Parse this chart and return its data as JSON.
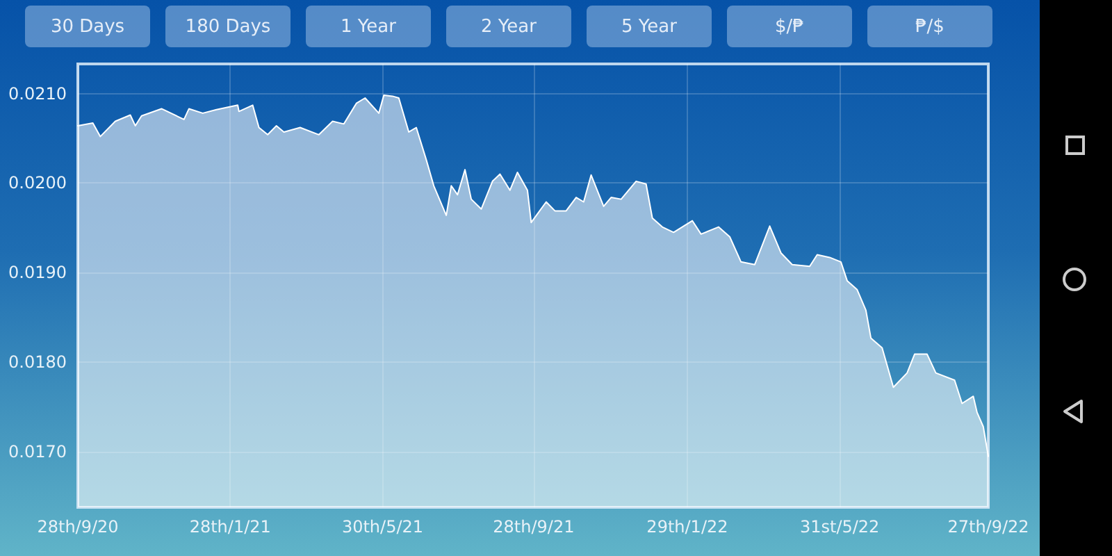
{
  "chart_data": {
    "type": "area",
    "annotations": [
      "30 Days",
      "180 Days",
      "1 Year",
      "2 Year",
      "5 Year",
      "$/₱",
      "₱/$"
    ],
    "x": [
      "2020-09-28",
      "2020-10-10",
      "2020-10-16",
      "2020-10-28",
      "2020-11-09",
      "2020-11-13",
      "2020-11-18",
      "2020-12-04",
      "2020-12-22",
      "2020-12-26",
      "2021-01-06",
      "2021-01-17",
      "2021-02-03",
      "2021-02-04",
      "2021-02-15",
      "2021-02-20",
      "2021-02-27",
      "2021-03-06",
      "2021-03-12",
      "2021-03-25",
      "2021-04-09",
      "2021-04-20",
      "2021-04-29",
      "2021-05-09",
      "2021-05-16",
      "2021-05-27",
      "2021-05-31",
      "2021-06-07",
      "2021-06-12",
      "2021-06-20",
      "2021-06-26",
      "2021-07-04",
      "2021-07-10",
      "2021-07-20",
      "2021-07-24",
      "2021-07-29",
      "2021-08-04",
      "2021-08-09",
      "2021-08-17",
      "2021-08-26",
      "2021-09-01",
      "2021-09-09",
      "2021-09-15",
      "2021-09-23",
      "2021-09-26",
      "2021-10-08",
      "2021-10-15",
      "2021-10-24",
      "2021-11-01",
      "2021-11-07",
      "2021-11-13",
      "2021-11-23",
      "2021-11-29",
      "2021-12-07",
      "2021-12-19",
      "2021-12-27",
      "2022-01-01",
      "2022-01-09",
      "2022-01-18",
      "2022-02-02",
      "2022-02-09",
      "2022-02-23",
      "2022-03-04",
      "2022-03-13",
      "2022-03-24",
      "2022-04-05",
      "2022-04-14",
      "2022-04-23",
      "2022-05-07",
      "2022-05-13",
      "2022-05-23",
      "2022-06-01",
      "2022-06-06",
      "2022-06-14",
      "2022-06-21",
      "2022-06-25",
      "2022-07-04",
      "2022-07-13",
      "2022-07-24",
      "2022-07-30",
      "2022-08-09",
      "2022-08-16",
      "2022-08-31",
      "2022-09-06",
      "2022-09-15",
      "2022-09-18",
      "2022-09-23",
      "2022-09-27"
    ],
    "series": [
      {
        "color": "#ffffff",
        "values": [
          0.02064,
          0.02067,
          0.02052,
          0.02069,
          0.02076,
          0.02064,
          0.02075,
          0.02083,
          0.02071,
          0.02083,
          0.02078,
          0.02082,
          0.02087,
          0.0208,
          0.02087,
          0.02062,
          0.02054,
          0.02064,
          0.02057,
          0.02062,
          0.02054,
          0.02069,
          0.02066,
          0.02089,
          0.02095,
          0.02078,
          0.02098,
          0.02097,
          0.02095,
          0.02057,
          0.02062,
          0.02026,
          0.01997,
          0.01964,
          0.01997,
          0.01987,
          0.02015,
          0.01982,
          0.01971,
          0.02002,
          0.0201,
          0.01992,
          0.02012,
          0.01992,
          0.01956,
          0.01979,
          0.01969,
          0.01969,
          0.01984,
          0.01979,
          0.02009,
          0.01974,
          0.01984,
          0.01982,
          0.02002,
          0.01999,
          0.01961,
          0.01951,
          0.01945,
          0.01958,
          0.01943,
          0.01951,
          0.0194,
          0.01912,
          0.01909,
          0.01952,
          0.01922,
          0.01909,
          0.01907,
          0.0192,
          0.01917,
          0.01912,
          0.01891,
          0.01881,
          0.01858,
          0.01827,
          0.01816,
          0.01772,
          0.01788,
          0.01809,
          0.01809,
          0.01788,
          0.0178,
          0.01754,
          0.01762,
          0.01744,
          0.01728,
          0.01695
        ]
      }
    ],
    "xlim": [
      "2020-09-28",
      "2022-09-27"
    ],
    "xticks": [
      {
        "value": "2020-09-28",
        "label": "28th/9/20"
      },
      {
        "value": "2021-01-28",
        "label": "28th/1/21"
      },
      {
        "value": "2021-05-30",
        "label": "30th/5/21"
      },
      {
        "value": "2021-09-28",
        "label": "28th/9/21"
      },
      {
        "value": "2022-01-29",
        "label": "29th/1/22"
      },
      {
        "value": "2022-05-31",
        "label": "31st/5/22"
      },
      {
        "value": "2022-09-27",
        "label": "27th/9/22"
      }
    ],
    "ylim": [
      0.01638,
      0.02133
    ],
    "yticks": [
      {
        "value": 0.017,
        "label": "0.0170"
      },
      {
        "value": 0.018,
        "label": "0.0180"
      },
      {
        "value": 0.019,
        "label": "0.0190"
      },
      {
        "value": 0.02,
        "label": "0.0200"
      },
      {
        "value": 0.021,
        "label": "0.0210"
      }
    ],
    "grid": true,
    "marker": "none",
    "line_style": "solid"
  }
}
